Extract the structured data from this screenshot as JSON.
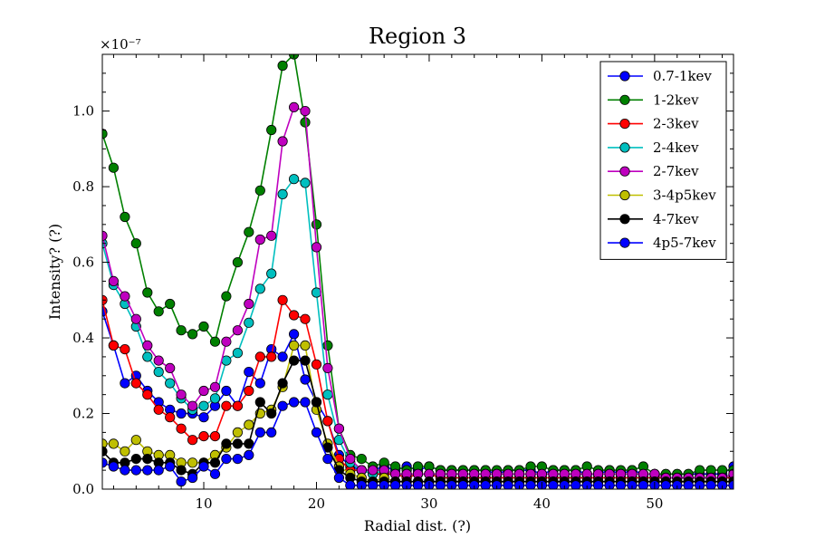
{
  "chart_data": {
    "type": "line",
    "title": "Region 3",
    "xlabel": "Radial dist. (?)",
    "ylabel": "Intensity? (?)",
    "y_multiplier": "×10⁻⁷",
    "xlim": [
      1,
      57
    ],
    "ylim": [
      0,
      1.15
    ],
    "xticks": [
      "10",
      "20",
      "30",
      "40",
      "50"
    ],
    "yticks": [
      "0.0",
      "0.2",
      "0.4",
      "0.6",
      "0.8",
      "1.0"
    ],
    "legend_position": "top-right",
    "x": [
      1,
      2,
      3,
      4,
      5,
      6,
      7,
      8,
      9,
      10,
      11,
      12,
      13,
      14,
      15,
      16,
      17,
      18,
      19,
      20,
      21,
      22,
      23,
      24,
      25,
      26,
      27,
      28,
      29,
      30,
      31,
      32,
      33,
      34,
      35,
      36,
      37,
      38,
      39,
      40,
      41,
      42,
      43,
      44,
      45,
      46,
      47,
      48,
      49,
      50,
      51,
      52,
      53,
      54,
      55,
      56,
      57
    ],
    "series": [
      {
        "name": "0.7-1kev",
        "color": "#0000ff",
        "values": [
          0.47,
          0.38,
          0.28,
          0.3,
          0.26,
          0.23,
          0.21,
          0.2,
          0.2,
          0.19,
          0.22,
          0.26,
          0.22,
          0.31,
          0.28,
          0.37,
          0.35,
          0.41,
          0.29,
          0.23,
          0.18,
          0.09,
          0.06,
          0.05,
          0.05,
          0.06,
          0.05,
          0.06,
          0.05,
          0.06,
          0.05,
          0.05,
          0.05,
          0.05,
          0.05,
          0.04,
          0.05,
          0.05,
          0.05,
          0.04,
          0.05,
          0.05,
          0.05,
          0.04,
          0.04,
          0.05,
          0.04,
          0.05,
          0.04,
          0.04,
          0.04,
          0.04,
          0.04,
          0.04,
          0.04,
          0.04,
          0.06
        ]
      },
      {
        "name": "1-2kev",
        "color": "#008000",
        "values": [
          0.94,
          0.85,
          0.72,
          0.65,
          0.52,
          0.47,
          0.49,
          0.42,
          0.41,
          0.43,
          0.39,
          0.51,
          0.6,
          0.68,
          0.79,
          0.95,
          1.12,
          1.15,
          0.97,
          0.7,
          0.38,
          0.16,
          0.09,
          0.08,
          0.06,
          0.07,
          0.06,
          0.05,
          0.06,
          0.06,
          0.05,
          0.05,
          0.05,
          0.05,
          0.05,
          0.05,
          0.05,
          0.05,
          0.06,
          0.06,
          0.05,
          0.05,
          0.05,
          0.06,
          0.05,
          0.05,
          0.05,
          0.05,
          0.06,
          0.04,
          0.04,
          0.04,
          0.04,
          0.05,
          0.05,
          0.05,
          0.05
        ]
      },
      {
        "name": "2-3kev",
        "color": "#ff0000",
        "values": [
          0.5,
          0.38,
          0.37,
          0.28,
          0.25,
          0.21,
          0.19,
          0.16,
          0.13,
          0.14,
          0.14,
          0.22,
          0.22,
          0.26,
          0.35,
          0.35,
          0.5,
          0.46,
          0.45,
          0.33,
          0.18,
          0.08,
          0.05,
          0.05,
          0.04,
          0.04,
          0.04,
          0.03,
          0.04,
          0.04,
          0.03,
          0.03,
          0.03,
          0.03,
          0.03,
          0.03,
          0.03,
          0.03,
          0.03,
          0.03,
          0.03,
          0.03,
          0.03,
          0.03,
          0.03,
          0.03,
          0.03,
          0.03,
          0.03,
          0.03,
          0.03,
          0.03,
          0.03,
          0.03,
          0.03,
          0.03,
          0.03
        ]
      },
      {
        "name": "2-4kev",
        "color": "#00bfbf",
        "values": [
          0.65,
          0.54,
          0.49,
          0.43,
          0.35,
          0.31,
          0.28,
          0.24,
          0.21,
          0.22,
          0.24,
          0.34,
          0.36,
          0.44,
          0.53,
          0.57,
          0.78,
          0.82,
          0.81,
          0.52,
          0.25,
          0.13,
          0.07,
          0.05,
          0.04,
          0.05,
          0.04,
          0.04,
          0.04,
          0.04,
          0.04,
          0.04,
          0.04,
          0.04,
          0.04,
          0.04,
          0.04,
          0.04,
          0.04,
          0.04,
          0.04,
          0.04,
          0.04,
          0.04,
          0.04,
          0.04,
          0.04,
          0.04,
          0.04,
          0.04,
          0.03,
          0.03,
          0.03,
          0.03,
          0.03,
          0.03,
          0.04
        ]
      },
      {
        "name": "2-7kev",
        "color": "#bf00bf",
        "values": [
          0.67,
          0.55,
          0.51,
          0.45,
          0.38,
          0.34,
          0.32,
          0.25,
          0.22,
          0.26,
          0.27,
          0.39,
          0.42,
          0.49,
          0.66,
          0.67,
          0.92,
          1.01,
          1.0,
          0.64,
          0.32,
          0.16,
          0.08,
          0.05,
          0.05,
          0.05,
          0.04,
          0.04,
          0.04,
          0.04,
          0.04,
          0.04,
          0.04,
          0.04,
          0.04,
          0.04,
          0.04,
          0.04,
          0.04,
          0.04,
          0.04,
          0.04,
          0.04,
          0.04,
          0.04,
          0.04,
          0.04,
          0.04,
          0.04,
          0.04,
          0.03,
          0.03,
          0.03,
          0.03,
          0.03,
          0.03,
          0.04
        ]
      },
      {
        "name": "3-4p5kev",
        "color": "#bfbf00",
        "values": [
          0.12,
          0.12,
          0.1,
          0.13,
          0.1,
          0.09,
          0.09,
          0.07,
          0.07,
          0.07,
          0.09,
          0.11,
          0.15,
          0.17,
          0.2,
          0.21,
          0.27,
          0.38,
          0.38,
          0.21,
          0.12,
          0.06,
          0.04,
          0.03,
          0.02,
          0.03,
          0.02,
          0.02,
          0.02,
          0.02,
          0.02,
          0.02,
          0.02,
          0.02,
          0.02,
          0.02,
          0.02,
          0.02,
          0.02,
          0.02,
          0.02,
          0.02,
          0.02,
          0.02,
          0.02,
          0.02,
          0.02,
          0.02,
          0.02,
          0.02,
          0.02,
          0.02,
          0.02,
          0.02,
          0.02,
          0.02,
          0.02
        ]
      },
      {
        "name": "4-7kev",
        "color": "#000000",
        "values": [
          0.1,
          0.07,
          0.07,
          0.08,
          0.08,
          0.07,
          0.07,
          0.05,
          0.04,
          0.07,
          0.07,
          0.12,
          0.12,
          0.12,
          0.23,
          0.2,
          0.28,
          0.34,
          0.34,
          0.23,
          0.11,
          0.05,
          0.03,
          0.02,
          0.02,
          0.02,
          0.02,
          0.02,
          0.02,
          0.02,
          0.02,
          0.02,
          0.02,
          0.02,
          0.02,
          0.02,
          0.02,
          0.02,
          0.02,
          0.02,
          0.02,
          0.02,
          0.02,
          0.02,
          0.02,
          0.02,
          0.02,
          0.02,
          0.02,
          0.02,
          0.02,
          0.02,
          0.02,
          0.02,
          0.02,
          0.02,
          0.02
        ]
      },
      {
        "name": "4p5-7kev",
        "color": "#0000ff",
        "values": [
          0.07,
          0.06,
          0.05,
          0.05,
          0.05,
          0.05,
          0.06,
          0.02,
          0.03,
          0.06,
          0.04,
          0.08,
          0.08,
          0.09,
          0.15,
          0.15,
          0.22,
          0.23,
          0.23,
          0.15,
          0.08,
          0.03,
          0.01,
          0.01,
          0.01,
          0.01,
          0.01,
          0.01,
          0.01,
          0.01,
          0.01,
          0.01,
          0.01,
          0.01,
          0.01,
          0.01,
          0.01,
          0.01,
          0.01,
          0.01,
          0.01,
          0.01,
          0.01,
          0.01,
          0.01,
          0.01,
          0.01,
          0.01,
          0.01,
          0.01,
          0.01,
          0.01,
          0.01,
          0.01,
          0.01,
          0.01,
          0.01
        ]
      }
    ]
  }
}
